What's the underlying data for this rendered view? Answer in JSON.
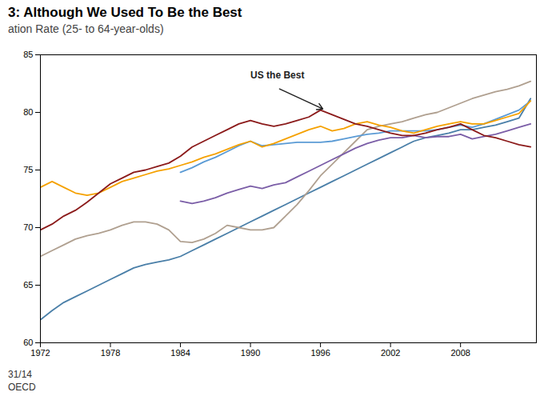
{
  "chart_data": {
    "type": "line",
    "title": "3: Although We Used To Be the Best",
    "subtitle": "ation Rate (25- to 64-year-olds)",
    "footnotes": [
      "31/14",
      "OECD"
    ],
    "annotations": [
      {
        "text": "US the Best",
        "x": 1996.2,
        "y": 80.3,
        "text_x": 1990.0,
        "text_y": 83.2
      }
    ],
    "xlim": [
      1972,
      2014.5
    ],
    "ylim": [
      60,
      85
    ],
    "xticks": [
      1972,
      1978,
      1984,
      1990,
      1996,
      2002,
      2008
    ],
    "yticks": [
      60,
      65,
      70,
      75,
      80,
      85
    ],
    "grid": false,
    "x": [
      1972,
      1973,
      1974,
      1975,
      1976,
      1977,
      1978,
      1979,
      1980,
      1981,
      1982,
      1983,
      1984,
      1985,
      1986,
      1987,
      1988,
      1989,
      1990,
      1991,
      1992,
      1993,
      1994,
      1995,
      1996,
      1997,
      1998,
      1999,
      2000,
      2001,
      2002,
      2003,
      2004,
      2005,
      2006,
      2007,
      2008,
      2009,
      2010,
      2011,
      2012,
      2013,
      2014
    ],
    "series": [
      {
        "color": "#4a7fa8",
        "values": [
          62.0,
          62.8,
          63.5,
          64.0,
          64.5,
          65.0,
          65.5,
          66.0,
          66.5,
          66.8,
          67.0,
          67.2,
          67.5,
          68.0,
          68.5,
          69.0,
          69.5,
          70.0,
          70.5,
          71.0,
          71.5,
          72.0,
          72.5,
          73.0,
          73.5,
          74.0,
          74.5,
          75.0,
          75.5,
          76.0,
          76.5,
          77.0,
          77.5,
          77.8,
          78.0,
          78.2,
          78.5,
          78.5,
          78.7,
          78.9,
          79.2,
          79.5,
          81.2
        ]
      },
      {
        "color": "#b0a090",
        "values": [
          67.5,
          68.0,
          68.5,
          69.0,
          69.3,
          69.5,
          69.8,
          70.2,
          70.5,
          70.5,
          70.3,
          69.8,
          68.8,
          68.7,
          69.0,
          69.5,
          70.2,
          70.0,
          69.8,
          69.8,
          70.0,
          71.0,
          72.0,
          73.2,
          74.5,
          75.5,
          76.5,
          77.5,
          78.5,
          78.8,
          79.0,
          79.2,
          79.5,
          79.8,
          80.0,
          80.4,
          80.8,
          81.2,
          81.5,
          81.8,
          82.0,
          82.3,
          82.7
        ]
      },
      {
        "color": "#7b5ea7",
        "values": [
          null,
          null,
          null,
          null,
          null,
          null,
          null,
          null,
          null,
          null,
          null,
          null,
          72.3,
          72.1,
          72.3,
          72.6,
          73.0,
          73.3,
          73.6,
          73.4,
          73.7,
          73.9,
          74.4,
          74.9,
          75.4,
          75.9,
          76.4,
          76.9,
          77.3,
          77.6,
          77.8,
          77.8,
          78.0,
          77.8,
          77.9,
          77.9,
          78.1,
          77.7,
          77.9,
          78.1,
          78.4,
          78.7,
          79.0
        ]
      },
      {
        "color": "#5b9bd5",
        "values": [
          null,
          null,
          null,
          null,
          null,
          null,
          null,
          null,
          null,
          null,
          null,
          null,
          74.8,
          75.2,
          75.7,
          76.1,
          76.6,
          77.1,
          77.5,
          77.1,
          77.2,
          77.3,
          77.4,
          77.4,
          77.4,
          77.5,
          77.7,
          77.9,
          78.1,
          78.2,
          78.4,
          78.4,
          78.4,
          78.4,
          78.5,
          78.7,
          78.9,
          78.7,
          79.0,
          79.4,
          79.8,
          80.2,
          81.0
        ]
      },
      {
        "color": "#f5a100",
        "values": [
          73.5,
          74.0,
          73.5,
          73.0,
          72.8,
          73.0,
          73.5,
          74.0,
          74.3,
          74.6,
          74.9,
          75.1,
          75.4,
          75.7,
          76.1,
          76.4,
          76.8,
          77.2,
          77.5,
          77.0,
          77.3,
          77.7,
          78.1,
          78.5,
          78.8,
          78.4,
          78.6,
          79.0,
          79.2,
          78.9,
          78.7,
          78.4,
          78.2,
          78.5,
          78.8,
          79.0,
          79.2,
          79.0,
          79.0,
          79.3,
          79.6,
          79.9,
          81.0
        ]
      },
      {
        "color": "#8b1a1a",
        "values": [
          69.8,
          70.3,
          71.0,
          71.5,
          72.2,
          73.0,
          73.8,
          74.3,
          74.8,
          75.0,
          75.3,
          75.6,
          76.2,
          77.0,
          77.5,
          78.0,
          78.5,
          79.0,
          79.3,
          79.0,
          78.8,
          79.0,
          79.3,
          79.6,
          80.2,
          79.8,
          79.4,
          79.0,
          78.8,
          78.5,
          78.2,
          78.0,
          78.0,
          78.2,
          78.5,
          78.7,
          79.0,
          78.5,
          78.0,
          77.8,
          77.5,
          77.2,
          77.0
        ]
      }
    ]
  }
}
